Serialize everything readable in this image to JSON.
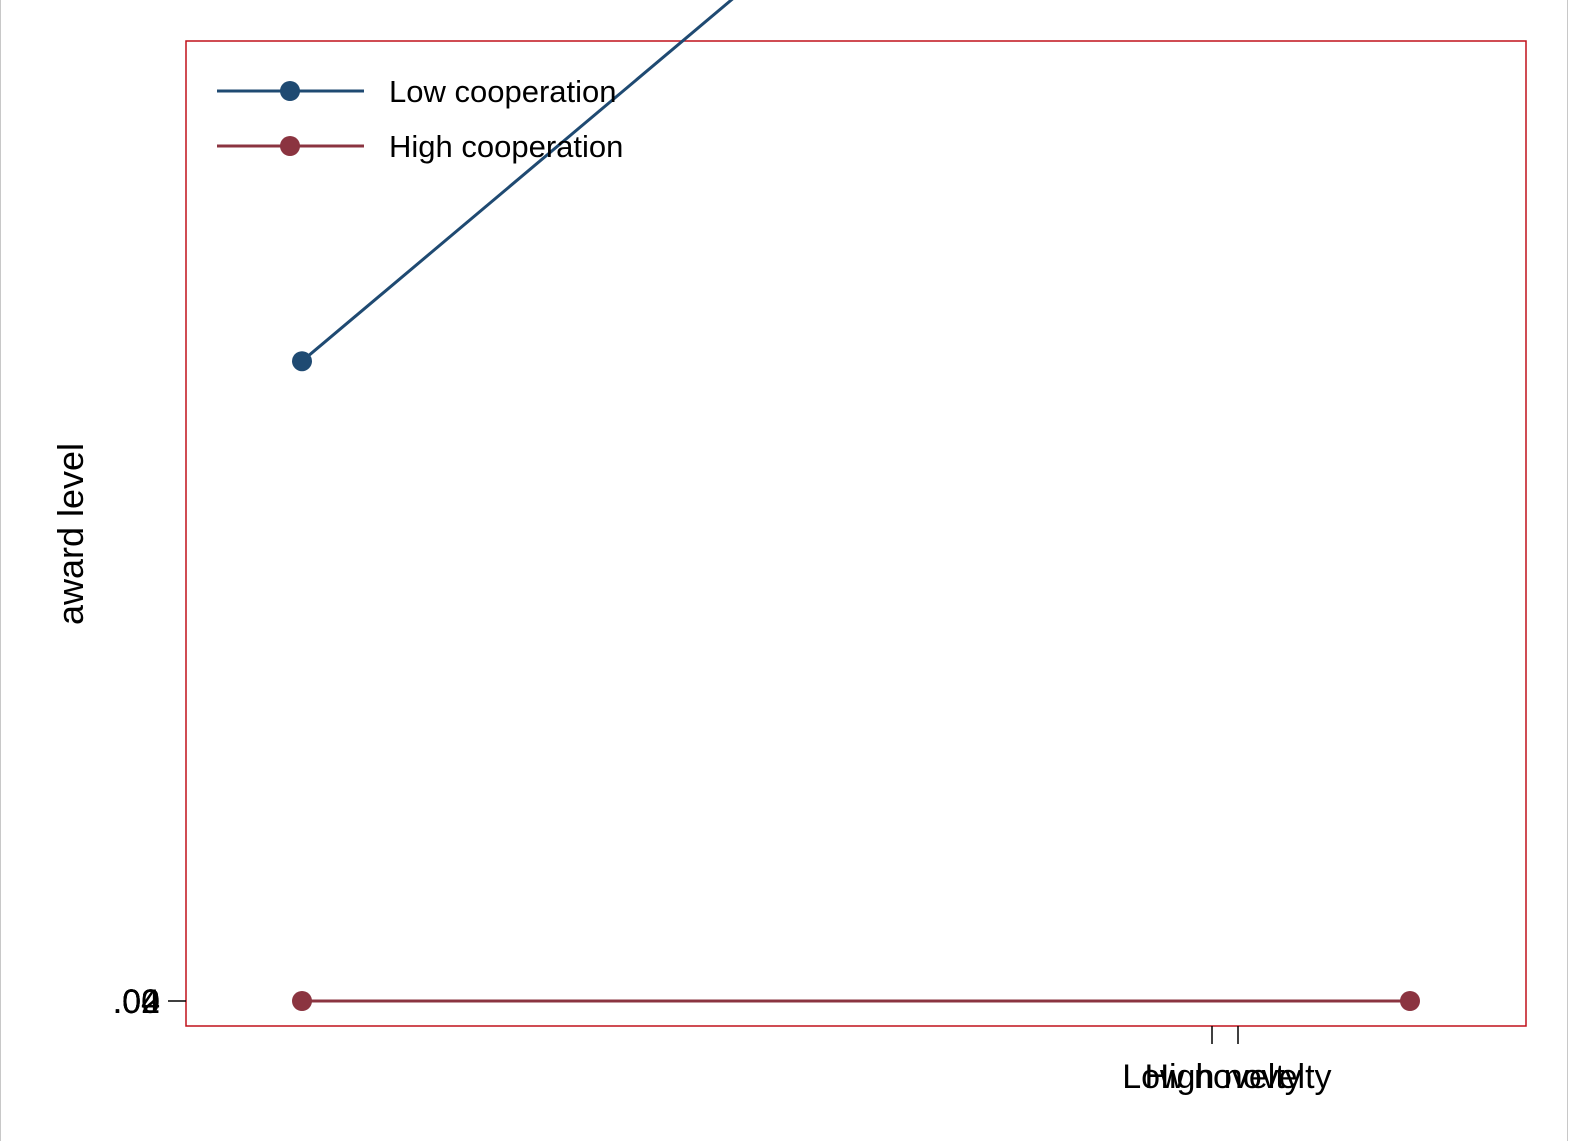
{
  "chart_data": {
    "type": "line",
    "title": "",
    "ylabel": "award level",
    "xlabel": "",
    "categories": [
      "Low novelty",
      "High novelty"
    ],
    "x_tick_labels": [
      "Low novelty",
      "High novelty"
    ],
    "y_tick_labels": [
      ".04",
      ".02",
      "0",
      ".02",
      ".04"
    ],
    "ylim": [
      -0.04,
      0.04
    ],
    "series": [
      {
        "name": "Low cooperation",
        "color": "#1f4a72",
        "values": [
          0.7,
          1.72
        ]
      },
      {
        "name": "High cooperation",
        "color": "#8b3440",
        "values": [
          0.0,
          0.0
        ]
      }
    ],
    "legend_position": "top-left",
    "plot_border_color": "#c0101a",
    "grid": false
  }
}
